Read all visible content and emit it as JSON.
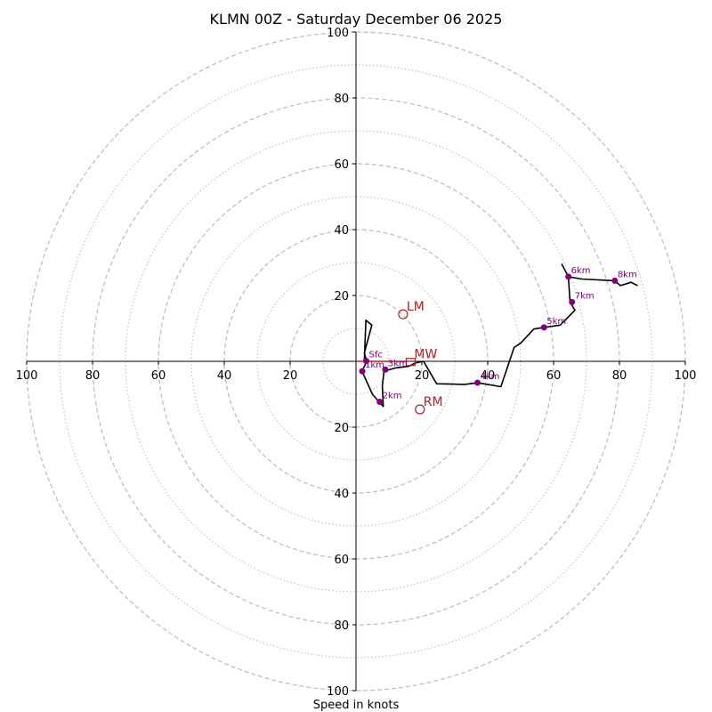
{
  "chart_data": {
    "type": "hodograph",
    "title": "KLMN 00Z - Saturday December 06 2025",
    "xlabel": "Speed in knots",
    "units": "knots",
    "ring_major": [
      20,
      40,
      60,
      80,
      100
    ],
    "ring_minor": [
      10,
      30,
      50,
      70,
      90
    ],
    "axis_max": 100,
    "tick_labels": {
      "left": [
        "100",
        "80",
        "60",
        "40",
        "20"
      ],
      "right": [
        "20",
        "40",
        "60",
        "80",
        "100"
      ],
      "top": [
        "20",
        "40",
        "60",
        "80",
        "100"
      ],
      "bottom": [
        "20",
        "40",
        "60",
        "80",
        "100"
      ]
    },
    "trace": [
      [
        2.5,
        -0.3
      ],
      [
        3,
        12.5
      ],
      [
        4.8,
        11
      ],
      [
        2.5,
        2.5
      ],
      [
        3.3,
        0
      ],
      [
        1.8,
        -3
      ],
      [
        5,
        -10
      ],
      [
        7,
        -12.3
      ],
      [
        8.3,
        -13.7
      ],
      [
        8,
        -7.5
      ],
      [
        8.5,
        -3
      ],
      [
        12,
        -2
      ],
      [
        16,
        -1.5
      ],
      [
        18,
        -0.5
      ],
      [
        20.5,
        0
      ],
      [
        24.5,
        -6.8
      ],
      [
        33,
        -7
      ],
      [
        36.9,
        -6.5
      ],
      [
        40,
        -7
      ],
      [
        44,
        -7.7
      ],
      [
        48,
        4.2
      ],
      [
        50,
        5.5
      ],
      [
        54,
        9.8
      ],
      [
        57,
        10.3
      ],
      [
        62,
        11
      ],
      [
        64,
        13
      ],
      [
        66.5,
        15.5
      ],
      [
        65,
        18
      ],
      [
        64.5,
        25.7
      ],
      [
        62.5,
        29.5
      ],
      [
        64.5,
        25.7
      ],
      [
        68.5,
        25
      ],
      [
        78.5,
        24.5
      ],
      [
        80.3,
        23
      ],
      [
        83.5,
        24
      ],
      [
        85.5,
        23
      ]
    ],
    "height_markers": [
      {
        "label": "Sfc",
        "x": 3.1,
        "y": 0.1
      },
      {
        "label": "1km",
        "x": 1.9,
        "y": -3
      },
      {
        "label": "2km",
        "x": 7.2,
        "y": -12.3
      },
      {
        "label": "3km",
        "x": 8.9,
        "y": -2.5
      },
      {
        "label": "4km",
        "x": 36.9,
        "y": -6.5
      },
      {
        "label": "5km",
        "x": 57.1,
        "y": 10.3
      },
      {
        "label": "6km",
        "x": 64.5,
        "y": 25.7
      },
      {
        "label": "7km",
        "x": 65.6,
        "y": 18
      },
      {
        "label": "8km",
        "x": 78.6,
        "y": 24.5
      }
    ],
    "storm_motion": [
      {
        "label": "LM",
        "x": 14.3,
        "y": 14.3,
        "shape": "circle"
      },
      {
        "label": "MW",
        "x": 16.6,
        "y": -0.2,
        "shape": "square"
      },
      {
        "label": "RM",
        "x": 19.4,
        "y": -14.6,
        "shape": "circle"
      }
    ],
    "shear_vector": {
      "from": [
        0,
        0
      ],
      "to": [
        16,
        0
      ]
    },
    "colors": {
      "trace": "#000000",
      "marker": "#800080",
      "storm": "#b22222",
      "grid": "#bbbbbb"
    }
  }
}
